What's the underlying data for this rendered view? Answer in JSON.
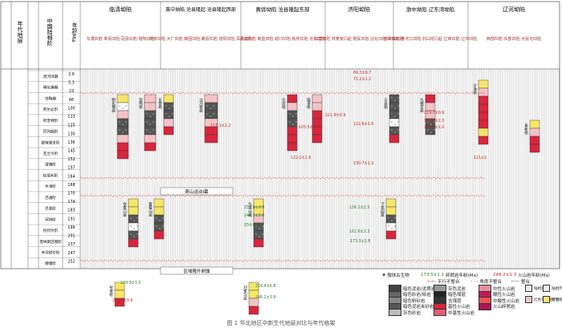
{
  "figure": {
    "caption": "图 1  华北地区中新生代地层对比与年代格架"
  },
  "colors": {
    "volcanic_red": "#d7263d",
    "mudstone_pink": "#f4c3c8",
    "sandstone_yellow": "#f7e66a",
    "dark_gray": "#555555",
    "ages_red": "#c62828",
    "ages_green": "#2e7d32",
    "unconformity": "#cc0000"
  },
  "left_headers": {
    "col1": "年代地层",
    "col2": "中国陆相阶",
    "col3": "年龄/Ma"
  },
  "basins": [
    {
      "name": "临清坳陷",
      "sub": "东濮凹陷 莘县凹陷 冠县凹陷 馆陶凹陷"
    },
    {
      "name": "冀中坳陷 沧县隆起 沧县隆起西部",
      "sub": "北京凹陷 大厂凹陷 廊固凹陷 霸县凹陷 饶阳凹陷 深县凹陷"
    },
    {
      "name": "黄骅坳陷 沧县隆起东部",
      "sub": "北塘凹陷 南堡凹陷 歧口凹陷 板桥凹陷 沧东凹陷"
    },
    {
      "name": "济阳坳陷",
      "sub": "东营凹陷 林樊家凸起 惠民凹陷 沾化凹陷 车镇凹陷"
    },
    {
      "name": "渤中坳陷 辽东湾坳陷",
      "sub": "渤中凹陷 黄河口凹陷 石臼坨凸起 辽西凹陷 辽中凹陷"
    },
    {
      "name": "辽河坳陷",
      "sub": "西部凹陷 东部凹陷 大民屯凹陷"
    }
  ],
  "stages": [
    {
      "name": "泥河湾期"
    },
    {
      "name": "明化镇期"
    },
    {
      "name": "馆陶期"
    },
    {
      "name": "阿尔必阶"
    },
    {
      "name": "阿普特阶"
    },
    {
      "name": "巴列姆阶"
    },
    {
      "name": "欧特里夫阶"
    },
    {
      "name": "瓦兰今阶"
    },
    {
      "name": "提塘阶"
    },
    {
      "name": "钦莫利阶"
    },
    {
      "name": "牛津阶"
    },
    {
      "name": "巴通阶"
    },
    {
      "name": "巴柔阶"
    },
    {
      "name": "阿林阶"
    },
    {
      "name": "托阿尔阶"
    },
    {
      "name": "普林斯巴赫阶"
    },
    {
      "name": "辛涅缪尔阶"
    },
    {
      "name": "赫塘阶"
    }
  ],
  "ages": [
    "2.6",
    "5.3",
    "23",
    "66",
    "100",
    "113",
    "125",
    "130",
    "136",
    "145",
    "152",
    "157",
    "164",
    "168",
    "170",
    "174",
    "183",
    "191",
    "199",
    "201",
    "237",
    "247",
    "252"
  ],
  "formations": [
    {
      "name": "明化镇组"
    },
    {
      "name": "馆陶组"
    },
    {
      "name": "东营组"
    },
    {
      "name": "沙河街组"
    },
    {
      "name": "孔店组"
    },
    {
      "name": "临清组"
    },
    {
      "name": "义县组"
    },
    {
      "name": "九佛堂组"
    },
    {
      "name": "沙海组"
    },
    {
      "name": "阜新组"
    },
    {
      "name": "张家口组"
    },
    {
      "name": "髫髻山组"
    },
    {
      "name": "九龙山组"
    },
    {
      "name": "下花园组"
    },
    {
      "name": "窑坡组"
    },
    {
      "name": "刘家沟组"
    }
  ],
  "age_labels": [
    {
      "text": "117.1±2.2",
      "color": "red"
    },
    {
      "text": "122.2±1.9",
      "color": "red"
    },
    {
      "text": "105.5±1.3",
      "color": "red"
    },
    {
      "text": "121.9±0.9",
      "color": "red"
    },
    {
      "text": "122.6±1.6",
      "color": "red"
    },
    {
      "text": "119.7±0.9",
      "color": "red"
    },
    {
      "text": "123.9±2.0",
      "color": "red"
    },
    {
      "text": "125.1±2.0",
      "color": "red"
    },
    {
      "text": "121±2",
      "color": "red"
    },
    {
      "text": "130.7±1.2",
      "color": "red"
    },
    {
      "text": "153.8±3.9",
      "color": "green"
    },
    {
      "text": "146.5±1.6",
      "color": "green"
    },
    {
      "text": "154.6±1.7",
      "color": "green"
    },
    {
      "text": "156.2±2.5",
      "color": "green"
    },
    {
      "text": "162.6±3.3",
      "color": "green"
    },
    {
      "text": "173.1±1.8",
      "color": "green"
    },
    {
      "text": "214.4±6.8",
      "color": "green"
    },
    {
      "text": "246.2±3.9",
      "color": "green"
    },
    {
      "text": "229.9±3.0",
      "color": "green"
    },
    {
      "text": "235.4±3.6",
      "color": "red"
    },
    {
      "text": "69.3±0.7",
      "color": "red"
    },
    {
      "text": "71.2±1.2",
      "color": "red"
    }
  ],
  "legend": {
    "top_row": {
      "fossil": "微体古生物",
      "detrital_age": "173.5±1.1",
      "detrital_label": "碎屑岩年龄(Ma)",
      "volcanic_age": "248.2±1.3",
      "volcanic_label": "火山岩年龄(Ma)",
      "unconf_parallel": "平行不整合",
      "unconf_angular": "角度不整合",
      "conformable": "整合"
    },
    "lithology": [
      "暗色泥岩/泥质岩",
      "暗色砂岩/砾岩",
      "暗色粉砂岩",
      "暗色泥岩夹砂岩",
      "灰色砂岩",
      "灰色泥岩",
      "暗色煤层",
      "含煤层",
      "基性火山岩",
      "中基性火山岩",
      "中性火山岩",
      "酸性火山岩",
      "中酸性火山岩",
      "火山碎屑岩"
    ],
    "environments": [
      "陆相湖泊",
      "陆相河流",
      "红色河湖相砂岩",
      "河流相砂岩"
    ],
    "region_labels": [
      "燕山运动Ⅰ幕",
      "区域隆升剥蚀"
    ]
  }
}
